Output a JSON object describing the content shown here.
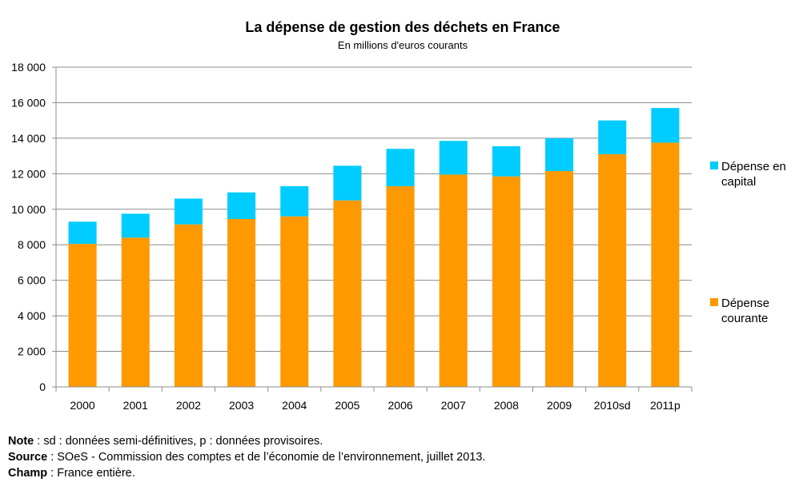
{
  "chart_data": {
    "type": "bar",
    "stacked": true,
    "title": "La dépense de gestion des déchets en France",
    "subtitle": "En millions d'euros courants",
    "categories": [
      "2000",
      "2001",
      "2002",
      "2003",
      "2004",
      "2005",
      "2006",
      "2007",
      "2008",
      "2009",
      "2010sd",
      "2011p"
    ],
    "series": [
      {
        "name": "Dépense courante",
        "color": "#FF9900",
        "values": [
          8050,
          8400,
          9150,
          9450,
          9600,
          10500,
          11300,
          11950,
          11850,
          12150,
          13100,
          13750
        ]
      },
      {
        "name": "Dépense en capital",
        "color": "#00CCFF",
        "values": [
          1250,
          1350,
          1450,
          1500,
          1700,
          1950,
          2100,
          1900,
          1700,
          1850,
          1900,
          1950
        ]
      }
    ],
    "ylim": [
      0,
      18000
    ],
    "yticks": [
      "0",
      "2 000",
      "4 000",
      "6 000",
      "8 000",
      "10 000",
      "12 000",
      "14 000",
      "16 000",
      "18 000"
    ],
    "grid": true,
    "legend_position": "right"
  },
  "notes": [
    {
      "label": "Note",
      "text": " : sd : données semi-définitives, p : données provisoires."
    },
    {
      "label": "Source",
      "text": " : SOeS - Commission des comptes et de l’économie de l’environnement, juillet 2013."
    },
    {
      "label": "Champ",
      "text": " : France entière."
    }
  ]
}
